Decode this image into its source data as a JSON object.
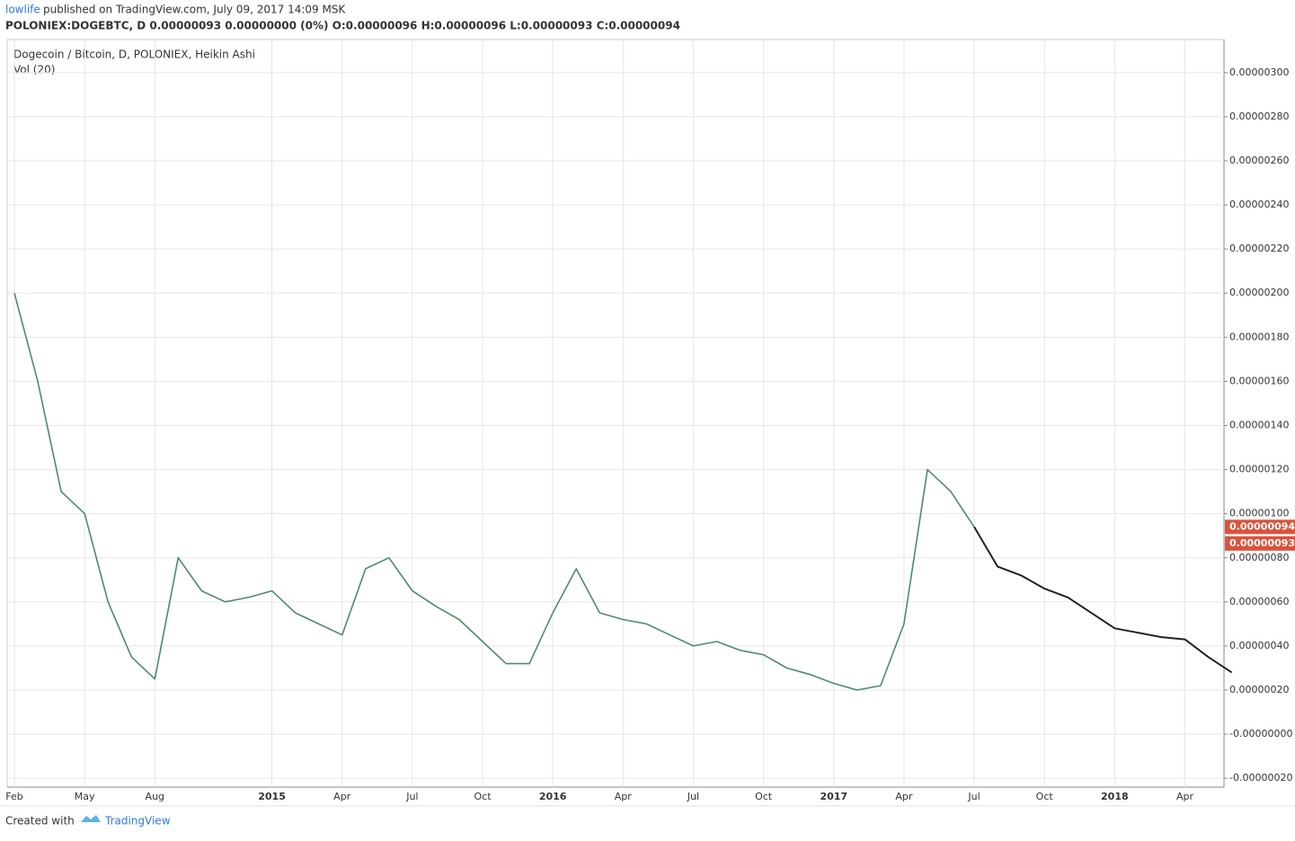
{
  "header": {
    "author": "lowlife",
    "published": "published on TradingView.com, July 09, 2017 14:09 MSK",
    "symbol_line": "POLONIEX:DOGEBTC, D  0.00000093 0.00000000 (0%) O:0.00000096 H:0.00000096 L:0.00000093 C:0.00000094"
  },
  "chart_data": {
    "type": "line",
    "indicator": "Vol (20)",
    "categories": [
      "Feb",
      null,
      null,
      "May",
      null,
      null,
      "Aug",
      null,
      null,
      null,
      null,
      "2015",
      null,
      null,
      "Apr",
      null,
      null,
      "Jul",
      null,
      null,
      "Oct",
      null,
      null,
      "2016",
      null,
      null,
      "Apr",
      null,
      null,
      "Jul",
      null,
      null,
      "Oct",
      null,
      null,
      "2017",
      null,
      null,
      "Apr",
      null,
      null,
      "Jul",
      null,
      null,
      "Oct",
      null,
      null,
      "2018",
      null,
      null,
      "Apr",
      null,
      null
    ],
    "series": [
      {
        "name": "Dogecoin / Bitcoin, D, POLONIEX, Heikin Ashi",
        "color": "#4f8a6a",
        "values": [
          2e-06,
          1.6e-06,
          1.1e-06,
          1e-06,
          6e-07,
          3.5e-07,
          2.5e-07,
          8e-07,
          6.5e-07,
          6e-07,
          6.2e-07,
          6.5e-07,
          5.5e-07,
          5e-07,
          4.5e-07,
          7.5e-07,
          8e-07,
          6.5e-07,
          5.8e-07,
          5.2e-07,
          4.2e-07,
          3.2e-07,
          3.2e-07,
          5.5e-07,
          7.5e-07,
          5.5e-07,
          5.2e-07,
          5e-07,
          4.5e-07,
          4e-07,
          4.2e-07,
          3.8e-07,
          3.6e-07,
          3e-07,
          2.7e-07,
          2.3e-07,
          2e-07,
          2.2e-07,
          5e-07,
          1.2e-06,
          1.1e-06,
          9.4e-07,
          null,
          null,
          null,
          null,
          null,
          null,
          null,
          null,
          null,
          null,
          null
        ]
      },
      {
        "color": "#222222",
        "values": [
          null,
          null,
          null,
          null,
          null,
          null,
          null,
          null,
          null,
          null,
          null,
          null,
          null,
          null,
          null,
          null,
          null,
          null,
          null,
          null,
          null,
          null,
          null,
          null,
          null,
          null,
          null,
          null,
          null,
          null,
          null,
          null,
          null,
          null,
          null,
          null,
          null,
          null,
          null,
          null,
          null,
          9.4e-07,
          7.6e-07,
          7.2e-07,
          6.6e-07,
          6.2e-07,
          5.5e-07,
          4.8e-07,
          4.6e-07,
          4.4e-07,
          4.3e-07,
          3.5e-07,
          2.8e-07
        ]
      }
    ],
    "price_tags": [
      {
        "value": 9.4e-07,
        "label": "0.00000094"
      },
      {
        "value": 9.3e-07,
        "label": "0.00000093"
      }
    ],
    "ylim": [
      -2.4e-07,
      3.15e-06
    ],
    "yticks": [
      {
        "value": -2e-07,
        "label": "-0.00000020"
      },
      {
        "value": 0,
        "label": "-0.00000000"
      },
      {
        "value": 2e-07,
        "label": "0.00000020"
      },
      {
        "value": 4e-07,
        "label": "0.00000040"
      },
      {
        "value": 6e-07,
        "label": "0.00000060"
      },
      {
        "value": 8e-07,
        "label": "0.00000080"
      },
      {
        "value": 1e-06,
        "label": "0.00000100"
      },
      {
        "value": 1.2e-06,
        "label": "0.00000120"
      },
      {
        "value": 1.4e-06,
        "label": "0.00000140"
      },
      {
        "value": 1.6e-06,
        "label": "0.00000160"
      },
      {
        "value": 1.8e-06,
        "label": "0.00000180"
      },
      {
        "value": 2e-06,
        "label": "0.00000200"
      },
      {
        "value": 2.2e-06,
        "label": "0.00000220"
      },
      {
        "value": 2.4e-06,
        "label": "0.00000240"
      },
      {
        "value": 2.6e-06,
        "label": "0.00000260"
      },
      {
        "value": 2.8e-06,
        "label": "0.00000280"
      },
      {
        "value": 3e-06,
        "label": "0.00000300"
      }
    ],
    "grid": true,
    "tag_color": "#d9533c"
  },
  "footer": {
    "created": "Created with",
    "brand": "TradingView"
  }
}
